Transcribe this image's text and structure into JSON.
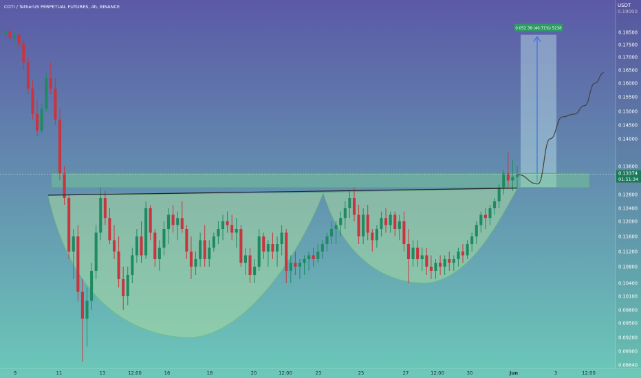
{
  "header": {
    "symbol_title": "COTI / TetherUS PERPETUAL FUTURES, 4h, BINANCE",
    "currency": "USDT"
  },
  "colors": {
    "bg_top": "#5b59a6",
    "bg_bottom": "#6cc9b9",
    "up": "#1e8a62",
    "down": "#c9343e",
    "zone": "#7ee08a",
    "cup": "#a7d9a3",
    "target_box": "#bfe3e8",
    "target_label": "#2e9b66",
    "neckline": "#222222",
    "projection": "#444444",
    "price_label": "#1b7a59"
  },
  "price_axis": {
    "ticks": [
      "0.18500",
      "0.17500",
      "0.17000",
      "0.16500",
      "0.16000",
      "0.15500",
      "0.15000",
      "0.14500",
      "0.14000",
      "0.13600",
      "0.12800",
      "0.12400",
      "0.12000",
      "0.11600",
      "0.11200",
      "0.10800",
      "0.10400",
      "0.10100",
      "0.09800",
      "0.09500",
      "0.09200",
      "0.08900",
      "0.08640"
    ],
    "current_price": "0.13374",
    "countdown": "01:51:34",
    "top_clipped": "0.19000"
  },
  "time_axis": {
    "ticks": [
      "9",
      "11",
      "13",
      "12:00",
      "16",
      "18",
      "20",
      "12:00",
      "23",
      "25",
      "27",
      "12:00",
      "30",
      "Jun",
      "3",
      "12:00"
    ]
  },
  "target_label": "0.052 38 (40.71%) 5238",
  "chart_data": {
    "type": "candlestick",
    "title": "COTI / TetherUS PERPETUAL FUTURES, 4h, BINANCE",
    "ylabel": "USDT",
    "ylim": [
      0.0864,
      0.193
    ],
    "current_price": 0.13374,
    "x_start": "9",
    "x_end": "12:00",
    "candles": [
      {
        "o": 0.184,
        "h": 0.1872,
        "l": 0.18,
        "c": 0.1855
      },
      {
        "o": 0.1855,
        "h": 0.187,
        "l": 0.179,
        "c": 0.1805
      },
      {
        "o": 0.1805,
        "h": 0.185,
        "l": 0.177,
        "c": 0.183
      },
      {
        "o": 0.183,
        "h": 0.184,
        "l": 0.174,
        "c": 0.176
      },
      {
        "o": 0.176,
        "h": 0.179,
        "l": 0.165,
        "c": 0.168
      },
      {
        "o": 0.168,
        "h": 0.17,
        "l": 0.156,
        "c": 0.158
      },
      {
        "o": 0.158,
        "h": 0.161,
        "l": 0.147,
        "c": 0.149
      },
      {
        "o": 0.149,
        "h": 0.154,
        "l": 0.141,
        "c": 0.143
      },
      {
        "o": 0.143,
        "h": 0.153,
        "l": 0.142,
        "c": 0.151
      },
      {
        "o": 0.151,
        "h": 0.164,
        "l": 0.15,
        "c": 0.162
      },
      {
        "o": 0.162,
        "h": 0.168,
        "l": 0.156,
        "c": 0.158
      },
      {
        "o": 0.158,
        "h": 0.162,
        "l": 0.145,
        "c": 0.147
      },
      {
        "o": 0.147,
        "h": 0.151,
        "l": 0.132,
        "c": 0.134
      },
      {
        "o": 0.134,
        "h": 0.136,
        "l": 0.125,
        "c": 0.127
      },
      {
        "o": 0.127,
        "h": 0.128,
        "l": 0.11,
        "c": 0.112
      },
      {
        "o": 0.112,
        "h": 0.118,
        "l": 0.105,
        "c": 0.116
      },
      {
        "o": 0.116,
        "h": 0.119,
        "l": 0.1,
        "c": 0.102
      },
      {
        "o": 0.102,
        "h": 0.105,
        "l": 0.087,
        "c": 0.096
      },
      {
        "o": 0.096,
        "h": 0.103,
        "l": 0.09,
        "c": 0.1
      },
      {
        "o": 0.1,
        "h": 0.109,
        "l": 0.098,
        "c": 0.107
      },
      {
        "o": 0.107,
        "h": 0.119,
        "l": 0.105,
        "c": 0.117
      },
      {
        "o": 0.117,
        "h": 0.13,
        "l": 0.115,
        "c": 0.127
      },
      {
        "o": 0.127,
        "h": 0.129,
        "l": 0.119,
        "c": 0.121
      },
      {
        "o": 0.121,
        "h": 0.124,
        "l": 0.114,
        "c": 0.115
      },
      {
        "o": 0.115,
        "h": 0.119,
        "l": 0.11,
        "c": 0.112
      },
      {
        "o": 0.112,
        "h": 0.116,
        "l": 0.103,
        "c": 0.105
      },
      {
        "o": 0.105,
        "h": 0.108,
        "l": 0.098,
        "c": 0.101
      },
      {
        "o": 0.101,
        "h": 0.108,
        "l": 0.099,
        "c": 0.106
      },
      {
        "o": 0.106,
        "h": 0.113,
        "l": 0.104,
        "c": 0.111
      },
      {
        "o": 0.111,
        "h": 0.118,
        "l": 0.109,
        "c": 0.116
      },
      {
        "o": 0.116,
        "h": 0.12,
        "l": 0.109,
        "c": 0.111
      },
      {
        "o": 0.111,
        "h": 0.126,
        "l": 0.11,
        "c": 0.124
      },
      {
        "o": 0.124,
        "h": 0.125,
        "l": 0.115,
        "c": 0.117
      },
      {
        "o": 0.117,
        "h": 0.118,
        "l": 0.108,
        "c": 0.11
      },
      {
        "o": 0.11,
        "h": 0.115,
        "l": 0.107,
        "c": 0.113
      },
      {
        "o": 0.113,
        "h": 0.12,
        "l": 0.111,
        "c": 0.118
      },
      {
        "o": 0.118,
        "h": 0.124,
        "l": 0.114,
        "c": 0.122
      },
      {
        "o": 0.122,
        "h": 0.125,
        "l": 0.117,
        "c": 0.119
      },
      {
        "o": 0.119,
        "h": 0.123,
        "l": 0.115,
        "c": 0.121
      },
      {
        "o": 0.121,
        "h": 0.126,
        "l": 0.117,
        "c": 0.118
      },
      {
        "o": 0.118,
        "h": 0.119,
        "l": 0.11,
        "c": 0.112
      },
      {
        "o": 0.112,
        "h": 0.116,
        "l": 0.105,
        "c": 0.108
      },
      {
        "o": 0.108,
        "h": 0.112,
        "l": 0.106,
        "c": 0.11
      },
      {
        "o": 0.11,
        "h": 0.117,
        "l": 0.108,
        "c": 0.115
      },
      {
        "o": 0.115,
        "h": 0.119,
        "l": 0.108,
        "c": 0.11
      },
      {
        "o": 0.11,
        "h": 0.115,
        "l": 0.108,
        "c": 0.113
      },
      {
        "o": 0.113,
        "h": 0.117,
        "l": 0.112,
        "c": 0.116
      },
      {
        "o": 0.116,
        "h": 0.12,
        "l": 0.114,
        "c": 0.118
      },
      {
        "o": 0.118,
        "h": 0.122,
        "l": 0.115,
        "c": 0.12
      },
      {
        "o": 0.12,
        "h": 0.123,
        "l": 0.117,
        "c": 0.119
      },
      {
        "o": 0.119,
        "h": 0.122,
        "l": 0.115,
        "c": 0.117
      },
      {
        "o": 0.117,
        "h": 0.121,
        "l": 0.113,
        "c": 0.118
      },
      {
        "o": 0.118,
        "h": 0.119,
        "l": 0.108,
        "c": 0.109
      },
      {
        "o": 0.109,
        "h": 0.113,
        "l": 0.106,
        "c": 0.111
      },
      {
        "o": 0.111,
        "h": 0.113,
        "l": 0.104,
        "c": 0.106
      },
      {
        "o": 0.106,
        "h": 0.11,
        "l": 0.104,
        "c": 0.108
      },
      {
        "o": 0.108,
        "h": 0.118,
        "l": 0.107,
        "c": 0.116
      },
      {
        "o": 0.116,
        "h": 0.117,
        "l": 0.11,
        "c": 0.112
      },
      {
        "o": 0.112,
        "h": 0.115,
        "l": 0.108,
        "c": 0.114
      },
      {
        "o": 0.114,
        "h": 0.117,
        "l": 0.11,
        "c": 0.112
      },
      {
        "o": 0.112,
        "h": 0.116,
        "l": 0.108,
        "c": 0.114
      },
      {
        "o": 0.114,
        "h": 0.119,
        "l": 0.111,
        "c": 0.117
      },
      {
        "o": 0.117,
        "h": 0.118,
        "l": 0.104,
        "c": 0.107
      },
      {
        "o": 0.107,
        "h": 0.111,
        "l": 0.104,
        "c": 0.109
      },
      {
        "o": 0.109,
        "h": 0.112,
        "l": 0.106,
        "c": 0.108
      },
      {
        "o": 0.108,
        "h": 0.11,
        "l": 0.105,
        "c": 0.109
      },
      {
        "o": 0.109,
        "h": 0.111,
        "l": 0.106,
        "c": 0.11
      },
      {
        "o": 0.11,
        "h": 0.112,
        "l": 0.107,
        "c": 0.111
      },
      {
        "o": 0.111,
        "h": 0.113,
        "l": 0.108,
        "c": 0.11
      },
      {
        "o": 0.11,
        "h": 0.114,
        "l": 0.109,
        "c": 0.112
      },
      {
        "o": 0.112,
        "h": 0.115,
        "l": 0.11,
        "c": 0.114
      },
      {
        "o": 0.114,
        "h": 0.117,
        "l": 0.112,
        "c": 0.116
      },
      {
        "o": 0.116,
        "h": 0.12,
        "l": 0.114,
        "c": 0.118
      },
      {
        "o": 0.118,
        "h": 0.12,
        "l": 0.114,
        "c": 0.119
      },
      {
        "o": 0.119,
        "h": 0.123,
        "l": 0.116,
        "c": 0.121
      },
      {
        "o": 0.121,
        "h": 0.126,
        "l": 0.118,
        "c": 0.124
      },
      {
        "o": 0.124,
        "h": 0.129,
        "l": 0.121,
        "c": 0.127
      },
      {
        "o": 0.127,
        "h": 0.13,
        "l": 0.12,
        "c": 0.122
      },
      {
        "o": 0.122,
        "h": 0.125,
        "l": 0.114,
        "c": 0.116
      },
      {
        "o": 0.116,
        "h": 0.124,
        "l": 0.114,
        "c": 0.122
      },
      {
        "o": 0.122,
        "h": 0.125,
        "l": 0.115,
        "c": 0.117
      },
      {
        "o": 0.117,
        "h": 0.118,
        "l": 0.112,
        "c": 0.115
      },
      {
        "o": 0.115,
        "h": 0.119,
        "l": 0.113,
        "c": 0.118
      },
      {
        "o": 0.118,
        "h": 0.123,
        "l": 0.116,
        "c": 0.121
      },
      {
        "o": 0.121,
        "h": 0.124,
        "l": 0.117,
        "c": 0.119
      },
      {
        "o": 0.119,
        "h": 0.123,
        "l": 0.117,
        "c": 0.122
      },
      {
        "o": 0.122,
        "h": 0.123,
        "l": 0.116,
        "c": 0.118
      },
      {
        "o": 0.118,
        "h": 0.122,
        "l": 0.115,
        "c": 0.12
      },
      {
        "o": 0.12,
        "h": 0.123,
        "l": 0.112,
        "c": 0.114
      },
      {
        "o": 0.114,
        "h": 0.118,
        "l": 0.104,
        "c": 0.11
      },
      {
        "o": 0.11,
        "h": 0.115,
        "l": 0.108,
        "c": 0.113
      },
      {
        "o": 0.113,
        "h": 0.115,
        "l": 0.108,
        "c": 0.11
      },
      {
        "o": 0.11,
        "h": 0.113,
        "l": 0.107,
        "c": 0.111
      },
      {
        "o": 0.111,
        "h": 0.113,
        "l": 0.106,
        "c": 0.108
      },
      {
        "o": 0.108,
        "h": 0.111,
        "l": 0.105,
        "c": 0.107
      },
      {
        "o": 0.107,
        "h": 0.11,
        "l": 0.105,
        "c": 0.109
      },
      {
        "o": 0.109,
        "h": 0.111,
        "l": 0.106,
        "c": 0.108
      },
      {
        "o": 0.108,
        "h": 0.111,
        "l": 0.106,
        "c": 0.11
      },
      {
        "o": 0.11,
        "h": 0.112,
        "l": 0.107,
        "c": 0.109
      },
      {
        "o": 0.109,
        "h": 0.111,
        "l": 0.107,
        "c": 0.11
      },
      {
        "o": 0.11,
        "h": 0.113,
        "l": 0.108,
        "c": 0.112
      },
      {
        "o": 0.112,
        "h": 0.114,
        "l": 0.109,
        "c": 0.111
      },
      {
        "o": 0.111,
        "h": 0.115,
        "l": 0.11,
        "c": 0.114
      },
      {
        "o": 0.114,
        "h": 0.117,
        "l": 0.112,
        "c": 0.116
      },
      {
        "o": 0.116,
        "h": 0.12,
        "l": 0.114,
        "c": 0.119
      },
      {
        "o": 0.119,
        "h": 0.123,
        "l": 0.117,
        "c": 0.122
      },
      {
        "o": 0.122,
        "h": 0.124,
        "l": 0.118,
        "c": 0.121
      },
      {
        "o": 0.121,
        "h": 0.125,
        "l": 0.119,
        "c": 0.124
      },
      {
        "o": 0.124,
        "h": 0.127,
        "l": 0.122,
        "c": 0.126
      },
      {
        "o": 0.126,
        "h": 0.131,
        "l": 0.124,
        "c": 0.13
      },
      {
        "o": 0.13,
        "h": 0.135,
        "l": 0.128,
        "c": 0.134
      },
      {
        "o": 0.134,
        "h": 0.138,
        "l": 0.13,
        "c": 0.132
      },
      {
        "o": 0.132,
        "h": 0.137,
        "l": 0.129,
        "c": 0.133
      },
      {
        "o": 0.133,
        "h": 0.136,
        "l": 0.13,
        "c": 0.1337
      }
    ],
    "neckline": {
      "y_left": 0.1278,
      "y_right": 0.1298
    },
    "resistance_zone": {
      "low": 0.13,
      "high": 0.134
    },
    "target": {
      "low": 0.133,
      "high": 0.183
    },
    "projection": [
      0.1337,
      0.131,
      0.14,
      0.148,
      0.149,
      0.152,
      0.16,
      0.164
    ]
  }
}
